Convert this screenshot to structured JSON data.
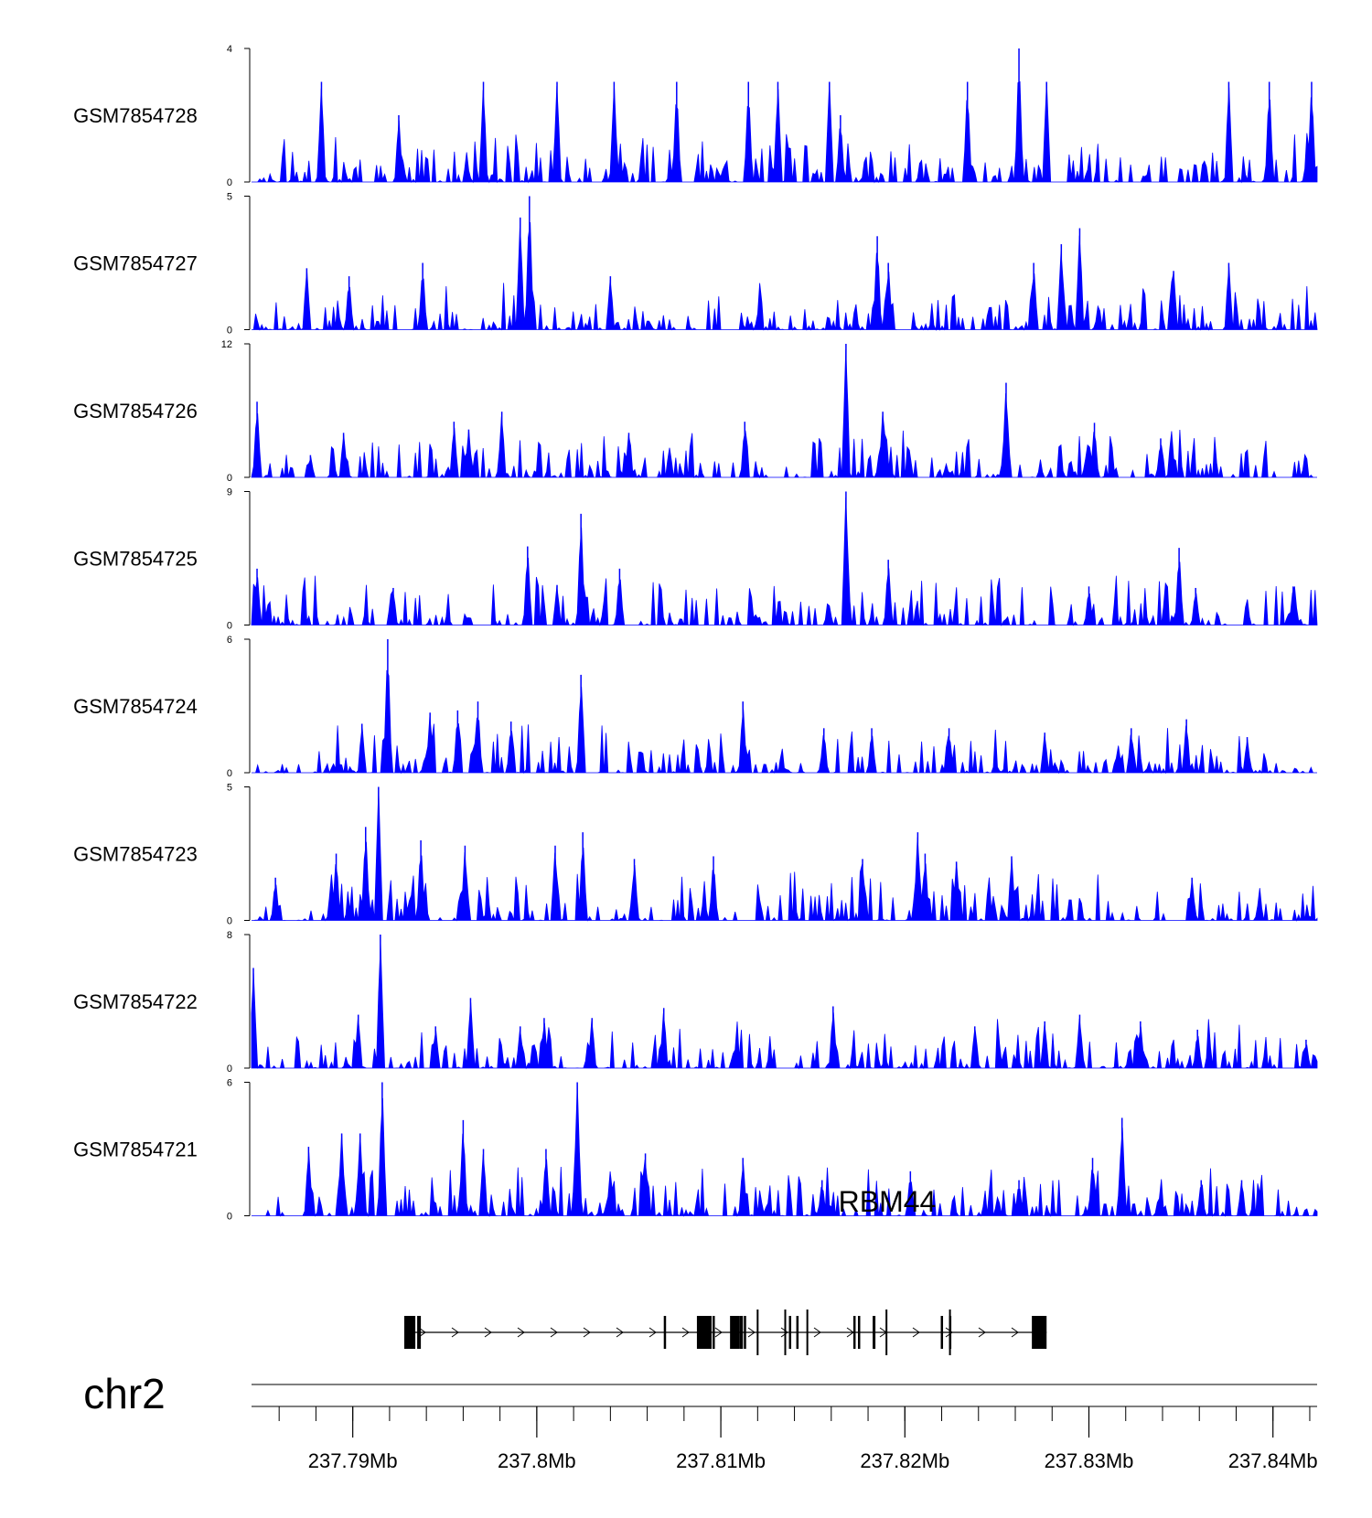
{
  "colors": {
    "track_fill": "#0000ff",
    "axis": "#000000",
    "gene": "#000000",
    "ideogram_line": "#555555"
  },
  "chart_data": {
    "type": "area",
    "title": "",
    "xlabel": "",
    "chromosome": "chr2",
    "genomic_range_mb": [
      237.7845,
      237.8424
    ],
    "x_ticks": [
      {
        "pos": 237.79,
        "label": "237.79Mb"
      },
      {
        "pos": 237.8,
        "label": "237.8Mb"
      },
      {
        "pos": 237.81,
        "label": "237.81Mb"
      },
      {
        "pos": 237.82,
        "label": "237.82Mb"
      },
      {
        "pos": 237.83,
        "label": "237.83Mb"
      },
      {
        "pos": 237.84,
        "label": "237.84Mb"
      }
    ],
    "tracks": [
      {
        "name": "GSM7854728",
        "ylim": [
          0,
          4
        ],
        "y_tick_labels": [
          "0",
          "4"
        ],
        "seed": 11,
        "peaks": [
          [
            237.7883,
            3
          ],
          [
            237.7971,
            3
          ],
          [
            237.8011,
            3
          ],
          [
            237.8042,
            3
          ],
          [
            237.8076,
            3
          ],
          [
            237.8115,
            3
          ],
          [
            237.8131,
            3
          ],
          [
            237.8159,
            3
          ],
          [
            237.8234,
            3
          ],
          [
            237.8262,
            4
          ],
          [
            237.8277,
            3
          ],
          [
            237.8376,
            3
          ],
          [
            237.8398,
            3
          ],
          [
            237.8421,
            3
          ],
          [
            237.8165,
            2
          ],
          [
            237.7925,
            2
          ]
        ]
      },
      {
        "name": "GSM7854727",
        "ylim": [
          0,
          5
        ],
        "y_tick_labels": [
          "0",
          "5"
        ],
        "seed": 23,
        "peaks": [
          [
            237.7875,
            2.3
          ],
          [
            237.7938,
            2.5
          ],
          [
            237.7996,
            5
          ],
          [
            237.7991,
            4.2
          ],
          [
            237.8191,
            2.5
          ],
          [
            237.8185,
            3.5
          ],
          [
            237.8295,
            3.8
          ],
          [
            237.8285,
            3.2
          ],
          [
            237.827,
            2.5
          ],
          [
            237.8376,
            2.5
          ],
          [
            237.8346,
            2.2
          ],
          [
            237.7898,
            2
          ],
          [
            237.804,
            2
          ]
        ]
      },
      {
        "name": "GSM7854726",
        "ylim": [
          0,
          12
        ],
        "y_tick_labels": [
          "0",
          "12"
        ],
        "seed": 37,
        "peaks": [
          [
            237.7848,
            6.8
          ],
          [
            237.7877,
            2
          ],
          [
            237.7895,
            4
          ],
          [
            237.7955,
            5
          ],
          [
            237.7981,
            5.9
          ],
          [
            237.805,
            4
          ],
          [
            237.8113,
            5
          ],
          [
            237.8168,
            12
          ],
          [
            237.8188,
            5.9
          ],
          [
            237.8255,
            8.5
          ],
          [
            237.8303,
            4.9
          ],
          [
            237.8339,
            3.5
          ],
          [
            237.8345,
            3.2
          ],
          [
            237.7963,
            4.3
          ]
        ]
      },
      {
        "name": "GSM7854725",
        "ylim": [
          0,
          9
        ],
        "y_tick_labels": [
          "0",
          "9"
        ],
        "seed": 41,
        "peaks": [
          [
            237.7848,
            3.8
          ],
          [
            237.7922,
            2.5
          ],
          [
            237.7995,
            5.3
          ],
          [
            237.8011,
            2.7
          ],
          [
            237.8024,
            7.5
          ],
          [
            237.8045,
            3.8
          ],
          [
            237.8168,
            9
          ],
          [
            237.8191,
            4.4
          ],
          [
            237.83,
            2.6
          ],
          [
            237.8349,
            5.2
          ],
          [
            237.8358,
            2.5
          ],
          [
            237.8411,
            2.6
          ]
        ]
      },
      {
        "name": "GSM7854724",
        "ylim": [
          0,
          6
        ],
        "y_tick_labels": [
          "0",
          "6"
        ],
        "seed": 53,
        "peaks": [
          [
            237.7905,
            2.2
          ],
          [
            237.7919,
            6
          ],
          [
            237.7942,
            2.7
          ],
          [
            237.7957,
            2.8
          ],
          [
            237.7968,
            3.2
          ],
          [
            237.7986,
            2.3
          ],
          [
            237.8024,
            4.4
          ],
          [
            237.8112,
            3.2
          ],
          [
            237.8156,
            2
          ],
          [
            237.8182,
            2
          ],
          [
            237.8224,
            2
          ],
          [
            237.8276,
            1.8
          ],
          [
            237.8323,
            2
          ],
          [
            237.8353,
            2.4
          ],
          [
            237.8386,
            1.6
          ]
        ]
      },
      {
        "name": "GSM7854723",
        "ylim": [
          0,
          5
        ],
        "y_tick_labels": [
          "0",
          "5"
        ],
        "seed": 67,
        "peaks": [
          [
            237.7858,
            1.6
          ],
          [
            237.7891,
            2.5
          ],
          [
            237.7914,
            5
          ],
          [
            237.7907,
            3.5
          ],
          [
            237.7937,
            3
          ],
          [
            237.7961,
            2.8
          ],
          [
            237.801,
            2.8
          ],
          [
            237.8025,
            3.3
          ],
          [
            237.8053,
            2.3
          ],
          [
            237.8096,
            2.4
          ],
          [
            237.8177,
            2.3
          ],
          [
            237.8207,
            3.3
          ],
          [
            237.8211,
            2.5
          ],
          [
            237.8228,
            2.2
          ],
          [
            237.8258,
            2.4
          ],
          [
            237.8356,
            1.6
          ]
        ]
      },
      {
        "name": "GSM7854722",
        "ylim": [
          0,
          8
        ],
        "y_tick_labels": [
          "0",
          "8"
        ],
        "seed": 79,
        "peaks": [
          [
            237.7846,
            6
          ],
          [
            237.7903,
            3.2
          ],
          [
            237.7915,
            8
          ],
          [
            237.7945,
            2.5
          ],
          [
            237.7964,
            4.2
          ],
          [
            237.7991,
            2.5
          ],
          [
            237.8004,
            3
          ],
          [
            237.803,
            3
          ],
          [
            237.8069,
            3.6
          ],
          [
            237.8161,
            3.7
          ],
          [
            237.8238,
            2.5
          ],
          [
            237.8276,
            2.8
          ],
          [
            237.8295,
            3.2
          ],
          [
            237.8328,
            2.8
          ],
          [
            237.8359,
            2.3
          ],
          [
            237.8418,
            1.7
          ]
        ]
      },
      {
        "name": "GSM7854721",
        "ylim": [
          0,
          6
        ],
        "y_tick_labels": [
          "0",
          "6"
        ],
        "seed": 97,
        "peaks": [
          [
            237.7876,
            3.1
          ],
          [
            237.7894,
            3.7
          ],
          [
            237.7904,
            3.7
          ],
          [
            237.7916,
            6
          ],
          [
            237.796,
            4.3
          ],
          [
            237.7971,
            3
          ],
          [
            237.8022,
            6
          ],
          [
            237.8005,
            3
          ],
          [
            237.8059,
            2.8
          ],
          [
            237.8112,
            2.6
          ],
          [
            237.8155,
            1.6
          ],
          [
            237.8203,
            2
          ],
          [
            237.8262,
            1.6
          ],
          [
            237.8302,
            2.6
          ],
          [
            237.8318,
            4.4
          ],
          [
            237.8361,
            1.6
          ],
          [
            237.8383,
            1.6
          ]
        ]
      }
    ],
    "gene": {
      "name": "RBM44",
      "strand": "+",
      "exons": [
        [
          237.7928,
          237.7934
        ],
        [
          237.7935,
          237.7937
        ],
        [
          237.8069,
          237.80695
        ],
        [
          237.8087,
          237.8095
        ],
        [
          237.80955,
          237.8096
        ],
        [
          237.8105,
          237.811
        ],
        [
          237.811,
          237.8112
        ],
        [
          237.81125,
          237.81135
        ],
        [
          237.8137,
          237.81375
        ],
        [
          237.8141,
          237.81415
        ],
        [
          237.8172,
          237.81725
        ],
        [
          237.81745,
          237.8175
        ],
        [
          237.81825,
          237.8184
        ],
        [
          237.82195,
          237.82205
        ],
        [
          237.8224,
          237.82245
        ],
        [
          237.8269,
          237.8277
        ]
      ]
    }
  }
}
